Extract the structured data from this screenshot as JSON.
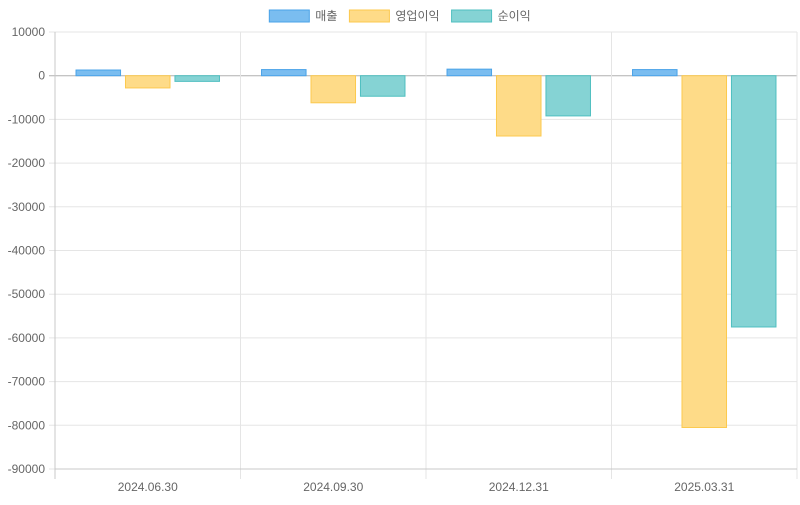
{
  "chart_data": {
    "type": "bar",
    "categories": [
      "2024.06.30",
      "2024.09.30",
      "2024.12.31",
      "2025.03.31"
    ],
    "series": [
      {
        "name": "매출",
        "values": [
          1300,
          1400,
          1500,
          1400
        ],
        "fill": "#7abdf0",
        "stroke": "#4aa3e8"
      },
      {
        "name": "영업이익",
        "values": [
          -2800,
          -6200,
          -13800,
          -80500
        ],
        "fill": "#fedb88",
        "stroke": "#fcc94e"
      },
      {
        "name": "순이익",
        "values": [
          -1300,
          -4700,
          -9200,
          -57500
        ],
        "fill": "#85d3d4",
        "stroke": "#4fbfc0"
      }
    ],
    "ylim": [
      -90000,
      10000
    ],
    "yticks": [
      "10000",
      "0",
      "-10000",
      "-20000",
      "-30000",
      "-40000",
      "-50000",
      "-60000",
      "-70000",
      "-80000",
      "-90000"
    ],
    "ytick_values": [
      10000,
      0,
      -10000,
      -20000,
      -30000,
      -40000,
      -50000,
      -60000,
      -70000,
      -80000,
      -90000
    ],
    "grid": true,
    "legend_position": "top-center",
    "colors": {
      "grid": "#e5e5e5",
      "axis": "#c8c8c8",
      "zero_line": "#b0b0b0",
      "text": "#666666"
    }
  }
}
